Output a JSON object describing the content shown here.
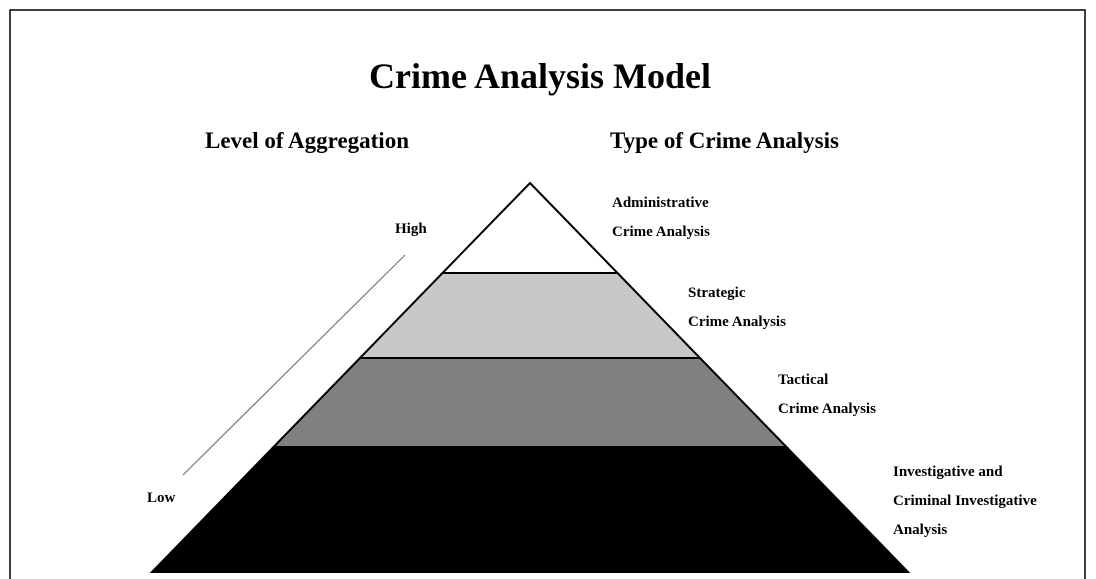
{
  "title": "Crime Analysis Model",
  "left_heading": "Level of Aggregation",
  "right_heading": "Type of Crime Analysis",
  "scale": {
    "high": "High",
    "low": "Low"
  },
  "levels": [
    {
      "lines": [
        "Administrative",
        "Crime Analysis"
      ]
    },
    {
      "lines": [
        "Strategic",
        "Crime Analysis"
      ]
    },
    {
      "lines": [
        "Tactical",
        "Crime Analysis"
      ]
    },
    {
      "lines": [
        "Investigative and",
        "Criminal Investigative",
        "Analysis"
      ]
    }
  ]
}
